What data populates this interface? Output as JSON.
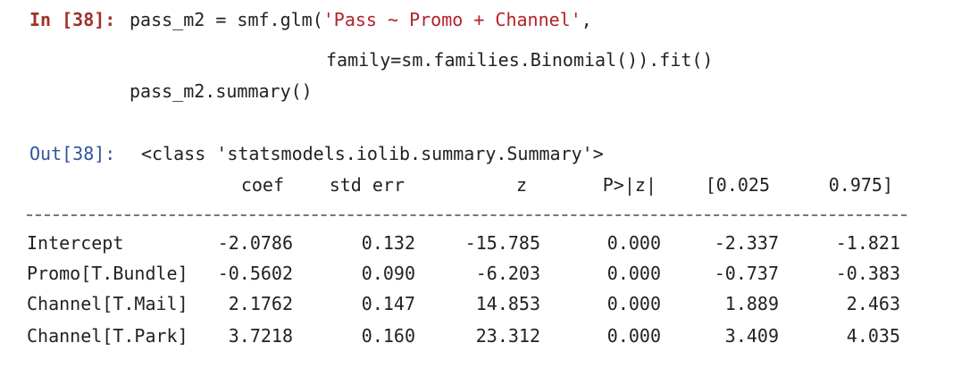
{
  "input": {
    "prompt": "In [38]:",
    "lines": [
      [
        "pass_m2 = smf.glm(",
        "'Pass ~ Promo + Channel'",
        ","
      ],
      [
        "family=sm.families.Binomial()).fit()"
      ],
      [
        "pass_m2.summary()"
      ]
    ]
  },
  "output": {
    "prompt": "Out[38]:",
    "text": "<class 'statsmodels.iolib.summary.Summary'>",
    "table": {
      "header": [
        "coef",
        "std err",
        "z",
        "P>|z|",
        "[0.025",
        "0.975]"
      ],
      "rows": [
        [
          "Intercept",
          "-2.0786",
          "0.132",
          "-15.785",
          "0.000",
          "-2.337",
          "-1.821"
        ],
        [
          "Promo[T.Bundle]",
          "-0.5602",
          "0.090",
          "-6.203",
          "0.000",
          "-0.737",
          "-0.383"
        ],
        [
          "Channel[T.Mail]",
          "2.1762",
          "0.147",
          "14.853",
          "0.000",
          "1.889",
          "2.463"
        ],
        [
          "Channel[T.Park]",
          "3.7218",
          "0.160",
          "23.312",
          "0.000",
          "3.409",
          "4.035"
        ]
      ]
    }
  }
}
